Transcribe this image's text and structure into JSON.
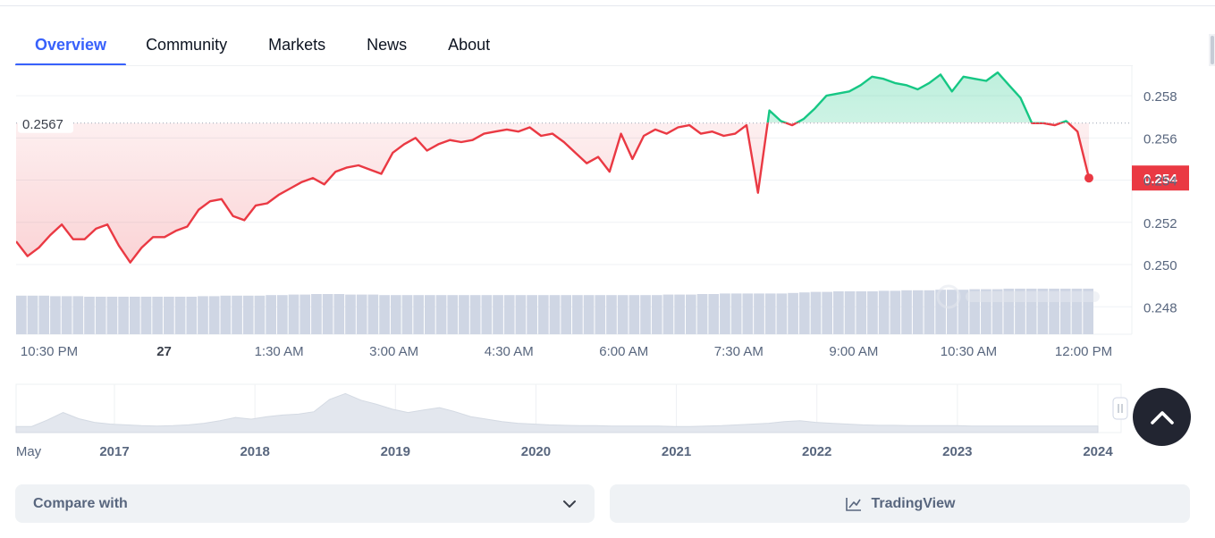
{
  "tabs": [
    {
      "label": "Overview",
      "active": true
    },
    {
      "label": "Community",
      "active": false
    },
    {
      "label": "Markets",
      "active": false
    },
    {
      "label": "News",
      "active": false
    },
    {
      "label": "About",
      "active": false
    }
  ],
  "colors": {
    "accent": "#3861fb",
    "up": "#16c784",
    "down": "#ea3943",
    "volume": "#cfd6e4",
    "axis_text": "#58667e",
    "grid": "#eff2f5"
  },
  "chart_data": {
    "type": "line",
    "reference_price": 0.2567,
    "reference_label": "0.2567",
    "current_price_label": "0.254",
    "ylim": [
      0.2467,
      0.2594
    ],
    "y_ticks": [
      {
        "value": 0.258,
        "label": "0.258"
      },
      {
        "value": 0.256,
        "label": "0.256"
      },
      {
        "value": 0.254,
        "label": "0.254"
      },
      {
        "value": 0.252,
        "label": "0.252"
      },
      {
        "value": 0.25,
        "label": "0.250"
      },
      {
        "value": 0.248,
        "label": "0.248"
      }
    ],
    "x_ticks": [
      {
        "label": "10:30 PM",
        "bold": false
      },
      {
        "label": "27",
        "bold": true
      },
      {
        "label": "1:30 AM",
        "bold": false
      },
      {
        "label": "3:00 AM",
        "bold": false
      },
      {
        "label": "4:30 AM",
        "bold": false
      },
      {
        "label": "6:00 AM",
        "bold": false
      },
      {
        "label": "7:30 AM",
        "bold": false
      },
      {
        "label": "9:00 AM",
        "bold": false
      },
      {
        "label": "10:30 AM",
        "bold": false
      },
      {
        "label": "12:00 PM",
        "bold": false
      }
    ],
    "price": [
      0.2511,
      0.2504,
      0.2508,
      0.2514,
      0.2519,
      0.2512,
      0.2512,
      0.2517,
      0.2519,
      0.2509,
      0.2501,
      0.2508,
      0.2513,
      0.2513,
      0.2516,
      0.2518,
      0.2526,
      0.253,
      0.2531,
      0.2523,
      0.2521,
      0.2528,
      0.2529,
      0.2533,
      0.2536,
      0.2539,
      0.2541,
      0.2538,
      0.2544,
      0.2546,
      0.2547,
      0.2545,
      0.2543,
      0.2553,
      0.2557,
      0.256,
      0.2554,
      0.2557,
      0.2559,
      0.2558,
      0.2559,
      0.2562,
      0.2563,
      0.2564,
      0.2563,
      0.2565,
      0.2561,
      0.2562,
      0.2558,
      0.2553,
      0.2548,
      0.2551,
      0.2544,
      0.2562,
      0.255,
      0.2561,
      0.2564,
      0.2562,
      0.2565,
      0.2566,
      0.2562,
      0.2563,
      0.2561,
      0.2562,
      0.2566,
      0.2534,
      0.2573,
      0.2568,
      0.2566,
      0.2569,
      0.2574,
      0.258,
      0.2581,
      0.2582,
      0.2585,
      0.2589,
      0.2588,
      0.2586,
      0.2585,
      0.2583,
      0.2586,
      0.259,
      0.2582,
      0.2589,
      0.2588,
      0.2587,
      0.2591,
      0.2585,
      0.2579,
      0.2567,
      0.2567,
      0.2566,
      0.2568,
      0.2563,
      0.2541
    ],
    "volume": [
      0.72,
      0.72,
      0.72,
      0.71,
      0.71,
      0.71,
      0.7,
      0.7,
      0.7,
      0.7,
      0.7,
      0.7,
      0.7,
      0.7,
      0.7,
      0.7,
      0.71,
      0.71,
      0.72,
      0.72,
      0.72,
      0.72,
      0.73,
      0.73,
      0.74,
      0.74,
      0.75,
      0.75,
      0.75,
      0.74,
      0.74,
      0.74,
      0.73,
      0.73,
      0.73,
      0.73,
      0.73,
      0.73,
      0.73,
      0.73,
      0.73,
      0.73,
      0.73,
      0.73,
      0.73,
      0.73,
      0.73,
      0.73,
      0.73,
      0.73,
      0.73,
      0.73,
      0.73,
      0.73,
      0.73,
      0.73,
      0.73,
      0.74,
      0.74,
      0.74,
      0.75,
      0.75,
      0.76,
      0.76,
      0.76,
      0.76,
      0.76,
      0.76,
      0.77,
      0.78,
      0.79,
      0.79,
      0.8,
      0.8,
      0.8,
      0.8,
      0.81,
      0.81,
      0.82,
      0.82,
      0.82,
      0.83,
      0.83,
      0.83,
      0.84,
      0.84,
      0.84,
      0.85,
      0.85,
      0.85,
      0.85,
      0.85,
      0.85,
      0.85,
      0.85
    ],
    "overview": {
      "labels": [
        {
          "label": "May",
          "bold": false
        },
        {
          "label": "2017",
          "bold": true
        },
        {
          "label": "2018",
          "bold": true
        },
        {
          "label": "2019",
          "bold": true
        },
        {
          "label": "2020",
          "bold": true
        },
        {
          "label": "2021",
          "bold": true
        },
        {
          "label": "2022",
          "bold": true
        },
        {
          "label": "2023",
          "bold": true
        },
        {
          "label": "2024",
          "bold": true
        }
      ],
      "series": [
        0.06,
        0.06,
        0.22,
        0.4,
        0.25,
        0.16,
        0.12,
        0.1,
        0.08,
        0.07,
        0.08,
        0.1,
        0.14,
        0.2,
        0.28,
        0.24,
        0.3,
        0.34,
        0.36,
        0.42,
        0.72,
        0.86,
        0.7,
        0.6,
        0.48,
        0.4,
        0.46,
        0.52,
        0.42,
        0.3,
        0.24,
        0.18,
        0.14,
        0.12,
        0.1,
        0.09,
        0.08,
        0.08,
        0.07,
        0.07,
        0.07,
        0.07,
        0.06,
        0.06,
        0.07,
        0.08,
        0.1,
        0.12,
        0.14,
        0.18,
        0.2,
        0.16,
        0.14,
        0.12,
        0.1,
        0.09,
        0.09,
        0.08,
        0.08,
        0.08,
        0.08,
        0.07,
        0.07,
        0.07,
        0.07,
        0.07,
        0.07,
        0.07,
        0.07,
        0.07
      ]
    }
  },
  "controls": {
    "compare_label": "Compare with",
    "tradingview_label": "TradingView"
  }
}
